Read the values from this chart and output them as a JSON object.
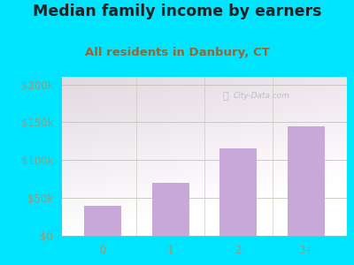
{
  "title": "Median family income by earners",
  "subtitle": "All residents in Danbury, CT",
  "categories": [
    "0",
    "1",
    "2",
    "3+"
  ],
  "values": [
    40000,
    70000,
    115000,
    145000
  ],
  "bar_color": "#c8a8d8",
  "background_outer": "#00e5ff",
  "title_color": "#222222",
  "subtitle_color": "#996633",
  "tick_color": "#999977",
  "ytick_labels": [
    "$0",
    "$50k",
    "$100k",
    "$150k",
    "$200k"
  ],
  "ytick_values": [
    0,
    50000,
    100000,
    150000,
    200000
  ],
  "ylim": [
    0,
    210000
  ],
  "title_fontsize": 12.5,
  "subtitle_fontsize": 9.5,
  "watermark": "City-Data.com"
}
